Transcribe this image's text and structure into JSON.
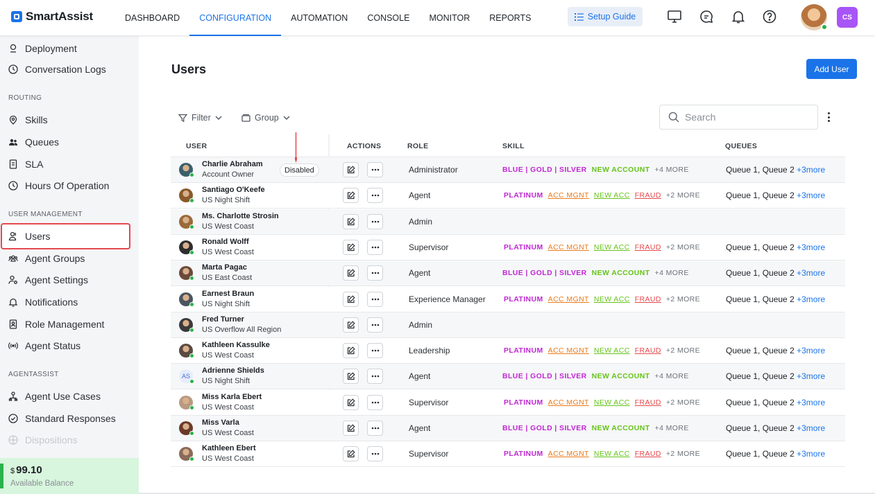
{
  "brand": {
    "name": "SmartAssist"
  },
  "nav": [
    "DASHBOARD",
    "CONFIGURATION",
    "AUTOMATION",
    "CONSOLE",
    "MONITOR",
    "REPORTS"
  ],
  "setup_guide": "Setup Guide",
  "user_badge": "CS",
  "sidebar": {
    "items_top": [
      "Deployment",
      "Conversation Logs"
    ],
    "routing_label": "ROUTING",
    "routing": [
      "Skills",
      "Queues",
      "SLA",
      "Hours Of Operation"
    ],
    "user_mgmt_label": "USER MANAGEMENT",
    "user_mgmt": [
      "Users",
      "Agent Groups",
      "Agent Settings",
      "Notifications",
      "Role Management",
      "Agent Status"
    ],
    "agentassist_label": "AGENTASSIST",
    "agentassist": [
      "Agent Use Cases",
      "Standard Responses",
      "Dispositions"
    ]
  },
  "balance": {
    "currency": "$",
    "amount": "99.10",
    "label": "Available Balance"
  },
  "page": {
    "title": "Users",
    "add_button": "Add User"
  },
  "toolbar": {
    "filter": "Filter",
    "group": "Group",
    "search_placeholder": "Search"
  },
  "table": {
    "headers": [
      "USER",
      "ACTIONS",
      "ROLE",
      "SKILL",
      "QUEUES"
    ],
    "rows": [
      {
        "name": "Charlie Abraham",
        "sub": "Account Owner",
        "status": "Disabled",
        "role": "Administrator",
        "skill": "A",
        "queues": "Queue 1, Queue 2",
        "queues_more": "+3more"
      },
      {
        "name": "Santiago O'Keefe",
        "sub": "US Night Shift",
        "role": "Agent",
        "skill": "B",
        "queues": "Queue 1, Queue 2",
        "queues_more": "+3more"
      },
      {
        "name": "Ms. Charlotte Strosin",
        "sub": "US West Coast",
        "role": "Admin",
        "skill": "",
        "queues": "",
        "queues_more": ""
      },
      {
        "name": "Ronald Wolff",
        "sub": "US West Coast",
        "role": "Supervisor",
        "skill": "B",
        "queues": "Queue 1, Queue 2",
        "queues_more": "+3more"
      },
      {
        "name": "Marta Pagac",
        "sub": "US East Coast",
        "role": "Agent",
        "skill": "A",
        "queues": "Queue 1, Queue 2",
        "queues_more": "+3more"
      },
      {
        "name": "Earnest Braun",
        "sub": "US Night Shift",
        "role": "Experience Manager",
        "skill": "B",
        "queues": "Queue 1, Queue 2",
        "queues_more": "+3more"
      },
      {
        "name": "Fred Turner",
        "sub": "US Overflow All Region",
        "role": "Admin",
        "skill": "",
        "queues": "",
        "queues_more": ""
      },
      {
        "name": "Kathleen Kassulke",
        "sub": "US West Coast",
        "role": "Leadership",
        "skill": "B",
        "queues": "Queue 1, Queue 2",
        "queues_more": "+3more"
      },
      {
        "name": "Adrienne Shields",
        "sub": "US Night Shift",
        "initials": "AS",
        "role": "Agent",
        "skill": "A",
        "queues": "Queue 1, Queue 2",
        "queues_more": "+3more"
      },
      {
        "name": "Miss Karla Ebert",
        "sub": "US West Coast",
        "role": "Supervisor",
        "skill": "B",
        "queues": "Queue 1, Queue 2",
        "queues_more": "+3more"
      },
      {
        "name": "Miss Varla",
        "sub": "US West Coast",
        "role": "Agent",
        "skill": "A",
        "queues": "Queue 1, Queue 2",
        "queues_more": "+3more"
      },
      {
        "name": "Kathleen Ebert",
        "sub": "US West Coast",
        "role": "Supervisor",
        "skill": "B",
        "queues": "Queue 1, Queue 2",
        "queues_more": "+3more"
      }
    ]
  },
  "skill_sets": {
    "A": [
      {
        "text": "BLUE | GOLD | SILVER",
        "color": "#c026d3",
        "style": "bold"
      },
      {
        "text": "NEW ACCOUNT",
        "color": "#65c31a",
        "style": "bold"
      },
      {
        "text": "+4 MORE",
        "color": "#6b7178",
        "style": "more"
      }
    ],
    "B": [
      {
        "text": "PLATINUM",
        "color": "#c026d3",
        "style": "bold"
      },
      {
        "text": "ACC MGNT",
        "color": "#ea7a1a",
        "style": "ul"
      },
      {
        "text": "NEW ACC",
        "color": "#65c31a",
        "style": "ul"
      },
      {
        "text": "FRAUD",
        "color": "#e5484d",
        "style": "ul"
      },
      {
        "text": "+2 MORE",
        "color": "#6b7178",
        "style": "more"
      }
    ]
  },
  "colors": {
    "accent": "#1a73e8",
    "online": "#2ab24b",
    "highlight": "#e5484d",
    "badge": "#a855f7"
  }
}
